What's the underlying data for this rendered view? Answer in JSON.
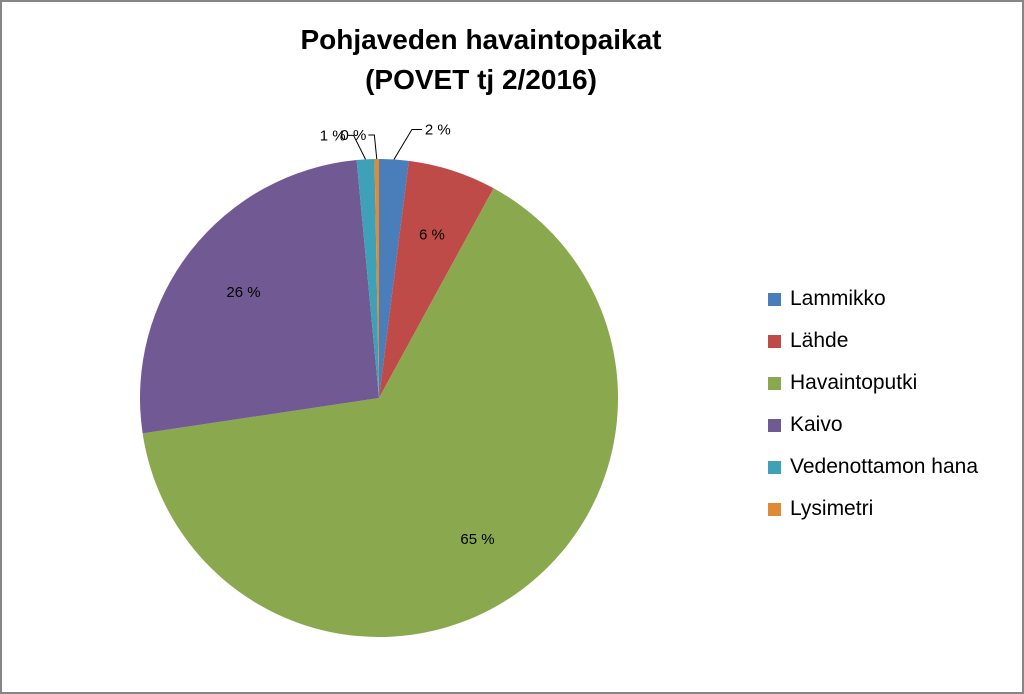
{
  "chart_data": {
    "type": "pie",
    "title": "Pohjaveden havaintopaikat",
    "subtitle": "(POVET tj 2/2016)",
    "legend_position": "right",
    "slices": [
      {
        "name": "Lammikko",
        "value": 2,
        "label": "2 %",
        "color": "#4a7ebb"
      },
      {
        "name": "Lähde",
        "value": 6,
        "label": "6 %",
        "color": "#be4b48"
      },
      {
        "name": "Havaintoputki",
        "value": 65,
        "label": "65 %",
        "color": "#8aa84e"
      },
      {
        "name": "Kaivo",
        "value": 26,
        "label": "26 %",
        "color": "#715a93"
      },
      {
        "name": "Vedenottamon hana",
        "value": 1.2,
        "label": "1 %",
        "color": "#3ea1b8"
      },
      {
        "name": "Lysimetri",
        "value": 0.3,
        "label": "0 %",
        "color": "#e08a35"
      }
    ]
  }
}
